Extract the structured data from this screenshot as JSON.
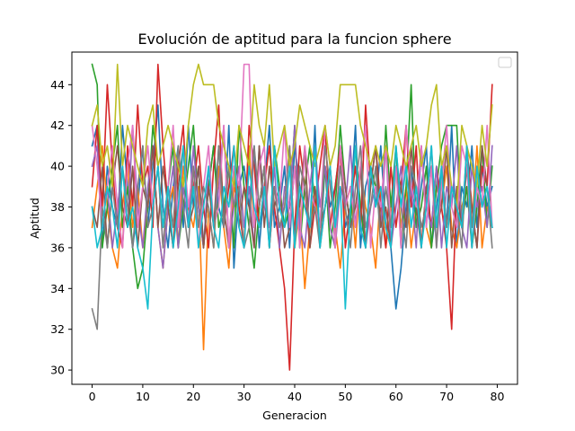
{
  "chart_data": {
    "type": "line",
    "title": "Evolución de aptitud para la funcion sphere",
    "xlabel": "Generacion",
    "ylabel": "Aptitud",
    "xlim": [
      -4,
      84
    ],
    "ylim": [
      29.3,
      45.6
    ],
    "xticks": [
      0,
      10,
      20,
      30,
      40,
      50,
      60,
      70,
      80
    ],
    "yticks": [
      30,
      32,
      34,
      36,
      38,
      40,
      42,
      44
    ],
    "legend": {
      "position": "upper right",
      "entries": []
    },
    "grid": false,
    "n_generations": 80,
    "value_range": [
      30,
      45
    ],
    "series": [
      {
        "color": "#1f77b4",
        "values": [
          41,
          42,
          36,
          40,
          38,
          37,
          42,
          39,
          36,
          38,
          41,
          37,
          40,
          43,
          38,
          36,
          39,
          41,
          37,
          42,
          38,
          40,
          36,
          39,
          41,
          38,
          37,
          42,
          35,
          39,
          40,
          38,
          41,
          36,
          39,
          42,
          37,
          38,
          40,
          36,
          41,
          39,
          38,
          37,
          42,
          36,
          40,
          38,
          39,
          41,
          37,
          38,
          42,
          36,
          39,
          40,
          38,
          41,
          37,
          36,
          33,
          35,
          38,
          40,
          37,
          39,
          41,
          36,
          38,
          40,
          37,
          42,
          36,
          39,
          38,
          41,
          37,
          40,
          38,
          39
        ]
      },
      {
        "color": "#ff7f0e",
        "values": [
          37,
          39,
          41,
          38,
          36,
          35,
          38,
          40,
          37,
          39,
          36,
          38,
          41,
          37,
          35,
          38,
          39,
          36,
          40,
          38,
          37,
          39,
          31,
          38,
          36,
          40,
          37,
          35,
          39,
          38,
          36,
          41,
          37,
          38,
          40,
          36,
          39,
          37,
          38,
          41,
          36,
          38,
          34,
          37,
          39,
          36,
          38,
          40,
          37,
          35,
          38,
          39,
          36,
          40,
          38,
          37,
          35,
          39,
          36,
          38,
          40,
          37,
          39,
          36,
          38,
          41,
          37,
          36,
          39,
          38,
          40,
          37,
          36,
          38,
          39,
          37,
          41,
          36,
          38,
          37
        ]
      },
      {
        "color": "#2ca02c",
        "values": [
          45,
          44,
          36,
          38,
          40,
          42,
          37,
          39,
          36,
          34,
          35,
          38,
          42,
          40,
          37,
          39,
          41,
          36,
          38,
          40,
          42,
          38,
          36,
          39,
          41,
          37,
          38,
          40,
          36,
          42,
          39,
          37,
          35,
          38,
          40,
          36,
          41,
          39,
          37,
          38,
          42,
          36,
          39,
          41,
          38,
          37,
          40,
          36,
          38,
          42,
          39,
          37,
          41,
          38,
          36,
          40,
          39,
          37,
          42,
          38,
          41,
          36,
          39,
          44,
          37,
          38,
          40,
          36,
          39,
          41,
          42,
          42,
          42,
          37,
          39,
          36,
          38,
          41,
          37,
          40
        ]
      },
      {
        "color": "#d62728",
        "values": [
          39,
          42,
          38,
          44,
          40,
          37,
          36,
          41,
          38,
          43,
          39,
          40,
          37,
          45,
          41,
          38,
          36,
          40,
          42,
          37,
          39,
          41,
          38,
          36,
          40,
          43,
          37,
          39,
          41,
          38,
          36,
          42,
          40,
          37,
          39,
          41,
          38,
          36,
          34,
          30,
          37,
          41,
          39,
          36,
          38,
          40,
          42,
          37,
          39,
          41,
          36,
          38,
          40,
          37,
          43,
          39,
          41,
          38,
          36,
          40,
          37,
          39,
          42,
          38,
          41,
          36,
          39,
          37,
          40,
          38,
          36,
          32,
          39,
          37,
          41,
          38,
          36,
          40,
          39,
          44
        ]
      },
      {
        "color": "#9467bd",
        "values": [
          40,
          41,
          37,
          39,
          36,
          38,
          40,
          37,
          42,
          38,
          36,
          39,
          41,
          37,
          35,
          38,
          40,
          36,
          39,
          37,
          41,
          38,
          36,
          40,
          37,
          39,
          42,
          36,
          38,
          40,
          37,
          39,
          36,
          41,
          38,
          37,
          40,
          36,
          39,
          38,
          42,
          37,
          36,
          39,
          41,
          38,
          40,
          37,
          36,
          39,
          38,
          41,
          37,
          40,
          36,
          38,
          39,
          37,
          41,
          36,
          38,
          40,
          37,
          39,
          36,
          41,
          38,
          37,
          40,
          36,
          39,
          38,
          41,
          37,
          36,
          40,
          38,
          39,
          37,
          41
        ]
      },
      {
        "color": "#8c564b",
        "values": [
          38,
          37,
          40,
          36,
          39,
          41,
          38,
          37,
          40,
          36,
          39,
          38,
          41,
          37,
          40,
          38,
          36,
          39,
          41,
          37,
          38,
          40,
          36,
          39,
          37,
          41,
          38,
          36,
          40,
          37,
          39,
          38,
          36,
          41,
          37,
          40,
          38,
          39,
          36,
          37,
          40,
          38,
          41,
          36,
          39,
          37,
          38,
          40,
          36,
          41,
          39,
          37,
          38,
          40,
          36,
          39,
          41,
          37,
          38,
          36,
          40,
          39,
          37,
          41,
          38,
          36,
          39,
          40,
          37,
          38,
          41,
          36,
          39,
          37,
          40,
          38,
          36,
          41,
          39,
          37
        ]
      },
      {
        "color": "#e377c2",
        "values": [
          42,
          40,
          37,
          39,
          41,
          38,
          36,
          40,
          42,
          37,
          39,
          41,
          38,
          40,
          36,
          39,
          42,
          37,
          41,
          38,
          40,
          36,
          39,
          41,
          37,
          38,
          42,
          36,
          40,
          39,
          45,
          45,
          37,
          40,
          41,
          36,
          39,
          38,
          42,
          37,
          40,
          36,
          41,
          39,
          38,
          37,
          42,
          40,
          36,
          41,
          38,
          39,
          37,
          40,
          42,
          36,
          39,
          38,
          41,
          37,
          40,
          36,
          42,
          39,
          38,
          41,
          37,
          40,
          36,
          39,
          42,
          38,
          37,
          41,
          40,
          36,
          39,
          38,
          42,
          37
        ]
      },
      {
        "color": "#7f7f7f",
        "values": [
          33,
          32,
          38,
          36,
          39,
          37,
          40,
          38,
          36,
          39,
          41,
          37,
          38,
          40,
          36,
          39,
          37,
          41,
          38,
          36,
          40,
          37,
          39,
          38,
          36,
          41,
          37,
          40,
          38,
          39,
          36,
          37,
          41,
          38,
          40,
          36,
          39,
          37,
          38,
          41,
          36,
          40,
          39,
          37,
          38,
          36,
          41,
          39,
          37,
          40,
          38,
          36,
          39,
          41,
          37,
          38,
          40,
          36,
          39,
          37,
          41,
          38,
          36,
          40,
          39,
          37,
          38,
          41,
          36,
          40,
          37,
          39,
          38,
          36,
          41,
          37,
          40,
          38,
          39,
          36
        ]
      },
      {
        "color": "#bcbd22",
        "values": [
          42,
          43,
          40,
          41,
          39,
          45,
          40,
          42,
          41,
          40,
          39,
          42,
          43,
          40,
          41,
          42,
          41,
          40,
          39,
          42,
          44,
          45,
          44,
          44,
          44,
          42,
          41,
          40,
          39,
          42,
          41,
          40,
          44,
          42,
          41,
          44,
          40,
          41,
          42,
          40,
          41,
          43,
          42,
          41,
          40,
          41,
          42,
          40,
          41,
          44,
          44,
          44,
          44,
          42,
          41,
          40,
          41,
          40,
          41,
          40,
          42,
          41,
          40,
          41,
          42,
          40,
          41,
          43,
          44,
          40,
          41,
          39,
          38,
          42,
          41,
          40,
          39,
          42,
          40,
          43
        ]
      },
      {
        "color": "#17becf",
        "values": [
          38,
          36,
          37,
          39,
          38,
          36,
          40,
          37,
          38,
          36,
          35,
          33,
          38,
          40,
          37,
          39,
          36,
          38,
          41,
          37,
          39,
          36,
          38,
          40,
          37,
          36,
          39,
          38,
          41,
          37,
          36,
          40,
          38,
          37,
          39,
          36,
          41,
          38,
          37,
          40,
          36,
          39,
          38,
          37,
          41,
          36,
          38,
          40,
          37,
          39,
          33,
          38,
          41,
          37,
          36,
          40,
          38,
          39,
          37,
          36,
          41,
          38,
          40,
          37,
          39,
          36,
          38,
          41,
          37,
          40,
          36,
          39,
          38,
          37,
          41,
          36,
          40,
          38,
          39,
          37
        ]
      }
    ]
  }
}
